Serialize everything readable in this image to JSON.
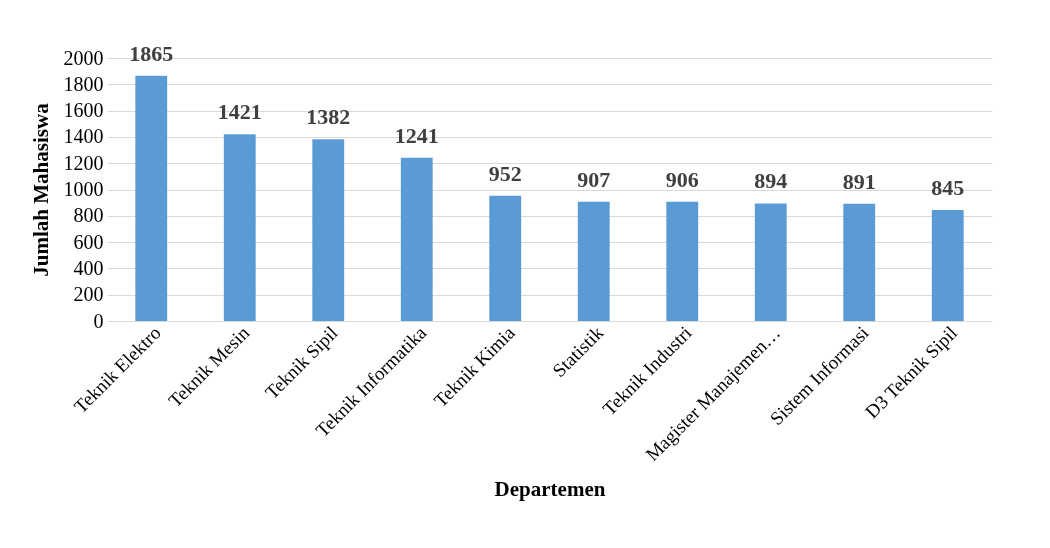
{
  "chart_data": {
    "type": "bar",
    "xlabel": "Departemen",
    "ylabel": "Jumlah Mahasiswa",
    "categories": [
      "Teknik Elektro",
      "Teknik Mesin",
      "Teknik Sipil",
      "Teknik Informatika",
      "Teknik Kimia",
      "Statistik",
      "Teknik Industri",
      "Magister Manajemen…",
      "Sistem Informasi",
      "D3 Teknik Sipil"
    ],
    "values": [
      1865,
      1421,
      1382,
      1241,
      952,
      907,
      906,
      894,
      891,
      845
    ],
    "color": "#5b9bd5",
    "ylim": [
      0,
      2000
    ],
    "yticks": [
      0,
      200,
      400,
      600,
      800,
      1000,
      1200,
      1400,
      1600,
      1800,
      2000
    ],
    "grid": "y",
    "data_labels": true
  }
}
